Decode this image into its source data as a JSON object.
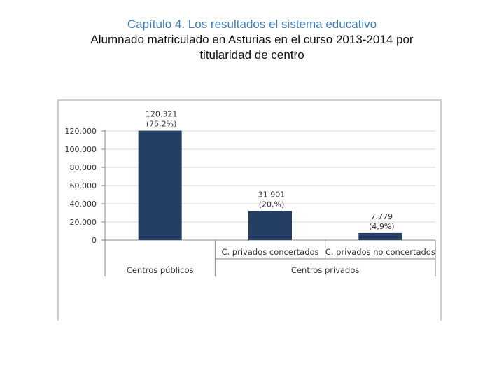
{
  "title": {
    "line1": "Capítulo 4. Los resultados el sistema educativo",
    "line2": "Alumnado matriculado en Asturias en el curso 2013-2014 por",
    "line3": "titularidad de centro"
  },
  "colors": {
    "bar": "#243f63",
    "title_accent": "#3f7fbf",
    "frame": "#bfbfbf",
    "grid": "#d9d9d9"
  },
  "chart_data": {
    "type": "bar",
    "categories": [
      "Centros públicos",
      "C. privados concertados",
      "C. privados no concertados"
    ],
    "group_labels": [
      "Centros públicos",
      "Centros privados"
    ],
    "values": [
      120321,
      31901,
      7779
    ],
    "value_labels": [
      "120.321",
      "31.901",
      "7.779"
    ],
    "percent_labels": [
      "(75,2%)",
      "(20,%)",
      "(4,9%)"
    ],
    "y_ticks": [
      "0",
      "20.000",
      "40.000",
      "60.000",
      "80.000",
      "100.000",
      "120.000"
    ],
    "ylim": [
      0,
      120000
    ],
    "xlabel": "",
    "ylabel": ""
  }
}
